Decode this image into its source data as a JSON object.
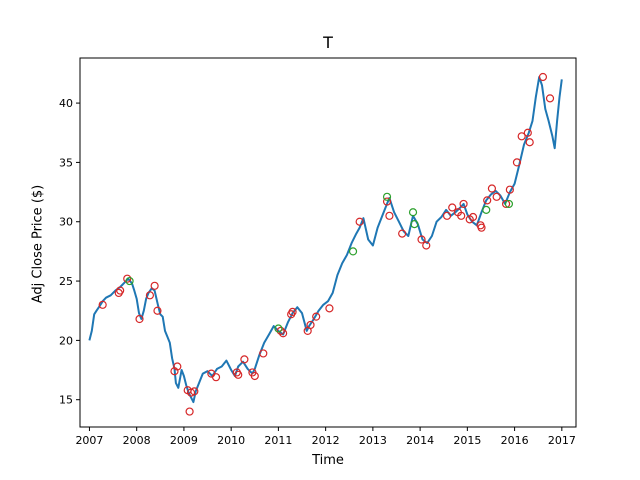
{
  "chart_data": {
    "type": "line",
    "title": "T",
    "xlabel": "Time",
    "ylabel": "Adj Close Price ($)",
    "xlim": [
      2006.8,
      2017.3
    ],
    "ylim": [
      12.7,
      43.8
    ],
    "x_ticks": [
      2007,
      2008,
      2009,
      2010,
      2011,
      2012,
      2013,
      2014,
      2015,
      2016,
      2017
    ],
    "x_tick_labels": [
      "2007",
      "2008",
      "2009",
      "2010",
      "2011",
      "2012",
      "2013",
      "2014",
      "2015",
      "2016",
      "2017"
    ],
    "y_ticks": [
      15,
      20,
      25,
      30,
      35,
      40
    ],
    "y_tick_labels": [
      "15",
      "20",
      "25",
      "30",
      "35",
      "40"
    ],
    "grid": false,
    "colors": {
      "line": "#1f77b4",
      "red_markers": "#d62728",
      "green_markers": "#2ca02c"
    },
    "series": [
      {
        "style": "line",
        "x": [
          2007.0,
          2007.05,
          2007.1,
          2007.15,
          2007.2,
          2007.28,
          2007.35,
          2007.45,
          2007.55,
          2007.65,
          2007.75,
          2007.82,
          2007.9,
          2007.95,
          2008.0,
          2008.05,
          2008.1,
          2008.15,
          2008.2,
          2008.25,
          2008.32,
          2008.38,
          2008.45,
          2008.5,
          2008.55,
          2008.6,
          2008.65,
          2008.7,
          2008.75,
          2008.8,
          2008.83,
          2008.88,
          2008.95,
          2009.0,
          2009.05,
          2009.1,
          2009.15,
          2009.2,
          2009.25,
          2009.32,
          2009.4,
          2009.5,
          2009.6,
          2009.7,
          2009.8,
          2009.9,
          2010.0,
          2010.08,
          2010.15,
          2010.25,
          2010.35,
          2010.45,
          2010.5,
          2010.6,
          2010.7,
          2010.8,
          2010.9,
          2011.0,
          2011.1,
          2011.2,
          2011.3,
          2011.4,
          2011.5,
          2011.6,
          2011.65,
          2011.75,
          2011.85,
          2011.95,
          2012.05,
          2012.15,
          2012.25,
          2012.35,
          2012.45,
          2012.55,
          2012.65,
          2012.72,
          2012.8,
          2012.9,
          2013.0,
          2013.1,
          2013.2,
          2013.3,
          2013.35,
          2013.45,
          2013.55,
          2013.65,
          2013.75,
          2013.85,
          2013.95,
          2014.05,
          2014.15,
          2014.25,
          2014.35,
          2014.45,
          2014.55,
          2014.65,
          2014.75,
          2014.85,
          2014.92,
          2015.0,
          2015.1,
          2015.2,
          2015.3,
          2015.4,
          2015.5,
          2015.6,
          2015.7,
          2015.8,
          2015.9,
          2016.0,
          2016.1,
          2016.2,
          2016.3,
          2016.38,
          2016.45,
          2016.52,
          2016.58,
          2016.65,
          2016.72,
          2016.8,
          2016.85,
          2016.9,
          2016.95,
          2017.0
        ],
        "y": [
          20.0,
          20.8,
          22.2,
          22.5,
          22.8,
          23.3,
          23.6,
          23.8,
          24.2,
          24.5,
          24.9,
          25.2,
          24.8,
          24.2,
          23.5,
          22.3,
          21.8,
          22.5,
          23.5,
          24.0,
          24.4,
          24.2,
          23.0,
          22.2,
          22.0,
          20.8,
          20.3,
          19.8,
          18.5,
          17.6,
          16.4,
          16.0,
          17.5,
          17.0,
          16.2,
          15.6,
          15.2,
          14.8,
          15.7,
          16.4,
          17.2,
          17.4,
          17.0,
          17.6,
          17.8,
          18.3,
          17.5,
          17.0,
          17.8,
          18.2,
          17.6,
          17.2,
          17.6,
          18.8,
          19.8,
          20.5,
          21.2,
          20.8,
          20.5,
          21.5,
          22.3,
          22.8,
          22.3,
          20.8,
          21.2,
          21.8,
          22.5,
          23.0,
          23.3,
          24.0,
          25.5,
          26.5,
          27.2,
          28.2,
          29.0,
          29.5,
          30.3,
          28.5,
          28.0,
          29.5,
          30.5,
          31.5,
          32.0,
          30.8,
          30.0,
          29.2,
          28.8,
          30.5,
          29.8,
          28.5,
          28.2,
          28.8,
          30.0,
          30.4,
          31.0,
          30.5,
          30.8,
          31.2,
          31.5,
          30.6,
          30.0,
          29.7,
          30.8,
          31.8,
          32.3,
          32.6,
          32.2,
          31.5,
          32.5,
          33.2,
          34.8,
          36.5,
          37.5,
          38.5,
          40.5,
          42.2,
          41.5,
          39.5,
          38.5,
          37.2,
          36.2,
          38.5,
          40.5,
          42.0
        ]
      },
      {
        "style": "red-circles",
        "x": [
          2007.28,
          2007.62,
          2007.65,
          2007.8,
          2008.06,
          2008.28,
          2008.38,
          2008.44,
          2008.8,
          2008.86,
          2009.08,
          2009.12,
          2009.15,
          2009.22,
          2009.58,
          2009.68,
          2010.12,
          2010.15,
          2010.28,
          2010.45,
          2010.5,
          2010.68,
          2011.05,
          2011.1,
          2011.27,
          2011.3,
          2011.62,
          2011.68,
          2011.8,
          2012.08,
          2012.72,
          2013.3,
          2013.35,
          2013.62,
          2014.03,
          2014.13,
          2014.57,
          2014.68,
          2014.8,
          2014.87,
          2014.92,
          2015.05,
          2015.12,
          2015.28,
          2015.3,
          2015.42,
          2015.52,
          2015.62,
          2015.82,
          2015.9,
          2016.05,
          2016.15,
          2016.28,
          2016.32,
          2016.6,
          2016.75
        ],
        "y": [
          23.0,
          24.0,
          24.2,
          25.2,
          21.8,
          23.8,
          24.6,
          22.5,
          17.4,
          17.8,
          15.8,
          14.0,
          15.6,
          15.7,
          17.2,
          16.9,
          17.3,
          17.1,
          18.4,
          17.3,
          17.0,
          18.9,
          20.8,
          20.6,
          22.2,
          22.4,
          20.8,
          21.3,
          22.0,
          22.7,
          30.0,
          31.7,
          30.5,
          29.0,
          28.5,
          28.0,
          30.5,
          31.2,
          30.8,
          30.5,
          31.5,
          30.2,
          30.4,
          29.7,
          29.5,
          31.8,
          32.8,
          32.1,
          31.5,
          32.7,
          35.0,
          37.2,
          37.5,
          36.7,
          42.2,
          40.4
        ]
      },
      {
        "style": "green-circles",
        "x": [
          2007.85,
          2011.0,
          2012.58,
          2013.3,
          2013.85,
          2013.88,
          2015.4,
          2015.88
        ],
        "y": [
          25.0,
          21.0,
          27.5,
          32.1,
          30.8,
          29.8,
          31.0,
          31.5
        ]
      }
    ]
  }
}
